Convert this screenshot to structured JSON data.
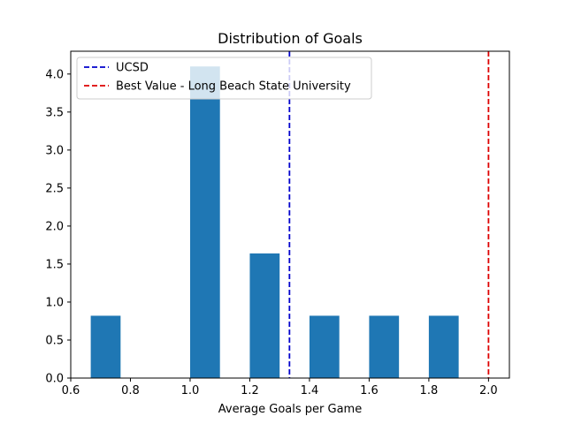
{
  "chart_data": {
    "type": "bar",
    "title": "Distribution of Goals",
    "xlabel": "Average Goals per Game",
    "ylabel": "",
    "xlim": [
      0.6,
      2.07
    ],
    "ylim": [
      0,
      4.3
    ],
    "xticks": [
      0.6,
      0.8,
      1.0,
      1.2,
      1.4,
      1.6,
      1.8,
      2.0
    ],
    "xtick_labels": [
      "0.6",
      "0.8",
      "1.0",
      "1.2",
      "1.4",
      "1.6",
      "1.8",
      "2.0"
    ],
    "yticks": [
      0,
      0.5,
      1.0,
      1.5,
      2.0,
      2.5,
      3.0,
      3.5,
      4.0
    ],
    "ytick_labels": [
      "0.0",
      "0.5",
      "1.0",
      "1.5",
      "2.0",
      "2.5",
      "3.0",
      "3.5",
      "4.0"
    ],
    "bins": [
      {
        "x0": 0.667,
        "x1": 0.767,
        "value": 0.82
      },
      {
        "x0": 1.0,
        "x1": 1.1,
        "value": 4.1
      },
      {
        "x0": 1.2,
        "x1": 1.3,
        "value": 1.64
      },
      {
        "x0": 1.4,
        "x1": 1.5,
        "value": 0.82
      },
      {
        "x0": 1.6,
        "x1": 1.7,
        "value": 0.82
      },
      {
        "x0": 1.8,
        "x1": 1.9,
        "value": 0.82
      }
    ],
    "bar_color": "#1f77b4",
    "reference_lines": [
      {
        "name": "UCSD",
        "x": 1.333,
        "color": "#0000cc",
        "style": "dashed"
      },
      {
        "name": "Best Value - Long Beach State University",
        "x": 2.0,
        "color": "#dd0000",
        "style": "dashed"
      }
    ],
    "legend_position": "top-left",
    "grid": false
  }
}
